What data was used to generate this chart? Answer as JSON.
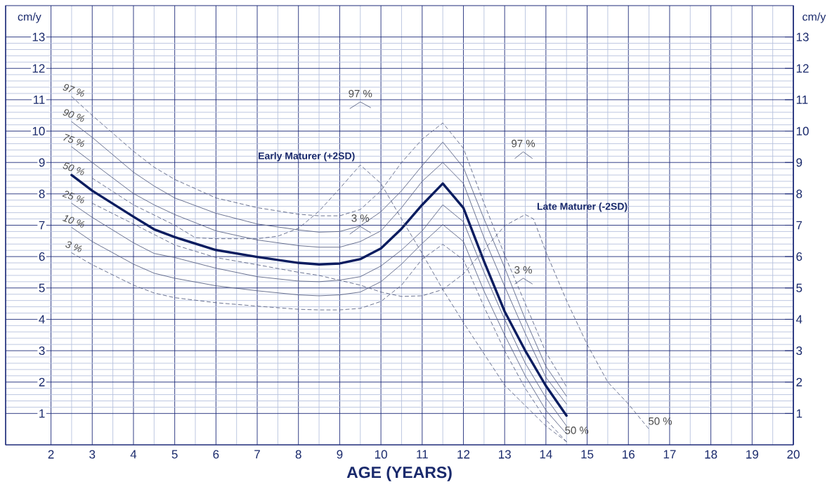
{
  "chart_data": {
    "type": "line",
    "xlabel": "AGE (YEARS)",
    "ylabel": "cm/y",
    "y2label": "cm/y",
    "xlim": [
      0.9,
      20
    ],
    "ylim": [
      0,
      14
    ],
    "y2lim": [
      0,
      14
    ],
    "xticks": [
      2,
      3,
      4,
      5,
      6,
      7,
      8,
      9,
      10,
      11,
      12,
      13,
      14,
      15,
      16,
      17,
      18,
      19,
      20
    ],
    "yticks": [
      1,
      2,
      3,
      4,
      5,
      6,
      7,
      8,
      9,
      10,
      11,
      12,
      13
    ],
    "y2ticks": [
      1,
      2,
      3,
      4,
      5,
      6,
      7,
      8,
      9,
      10,
      11,
      12,
      13
    ],
    "grid": true,
    "legend": false,
    "marker": "none",
    "series": [
      {
        "name": "97 %",
        "color": "#5a6384",
        "line_style": "dashed",
        "x": [
          2.5,
          3,
          4,
          4.5,
          5,
          6,
          7,
          8,
          8.5,
          9,
          9.5,
          10,
          10.5,
          11,
          11.5,
          12,
          12.5,
          13,
          13.5,
          14,
          14.5
        ],
        "values": [
          11.1,
          10.5,
          9.36,
          8.85,
          8.46,
          7.87,
          7.56,
          7.35,
          7.3,
          7.3,
          7.5,
          8.1,
          9.0,
          9.74,
          10.26,
          9.45,
          7.7,
          6.05,
          4.5,
          2.95,
          1.85
        ]
      },
      {
        "name": "90 %",
        "color": "#5a6384",
        "line_style": "solid",
        "x": [
          2.5,
          3,
          4,
          4.5,
          5,
          6,
          7,
          8,
          8.5,
          9,
          9.5,
          10,
          10.5,
          11,
          11.5,
          12,
          12.5,
          13,
          13.5,
          14,
          14.5
        ],
        "values": [
          10.3,
          9.8,
          8.69,
          8.25,
          7.87,
          7.38,
          7.04,
          6.85,
          6.78,
          6.8,
          6.98,
          7.43,
          8.1,
          8.9,
          9.65,
          8.84,
          7.2,
          5.65,
          4.0,
          2.5,
          1.55
        ]
      },
      {
        "name": "75 %",
        "color": "#5a6384",
        "line_style": "solid",
        "x": [
          2.5,
          3,
          4,
          4.5,
          5,
          6,
          7,
          8,
          8.5,
          9,
          9.5,
          10,
          10.5,
          11,
          11.5,
          12,
          12.5,
          13,
          13.5,
          14,
          14.5
        ],
        "values": [
          9.5,
          9.0,
          8.01,
          7.65,
          7.34,
          6.82,
          6.53,
          6.35,
          6.3,
          6.3,
          6.48,
          6.82,
          7.56,
          8.4,
          9.0,
          8.33,
          6.6,
          5.05,
          3.55,
          2.15,
          1.3
        ]
      },
      {
        "name": "50 %",
        "color": "#0b1c5f",
        "line_style": "solid",
        "x": [
          2.5,
          3,
          4,
          4.5,
          5,
          6,
          7,
          8,
          8.5,
          9,
          9.5,
          10,
          10.5,
          11,
          11.5,
          12,
          12.5,
          13,
          13.5,
          14,
          14.5
        ],
        "values": [
          8.6,
          8.1,
          7.27,
          6.87,
          6.62,
          6.21,
          5.99,
          5.8,
          5.75,
          5.78,
          5.92,
          6.26,
          6.89,
          7.65,
          8.33,
          7.55,
          5.85,
          4.25,
          3.0,
          1.88,
          0.93
        ]
      },
      {
        "name": "25 %",
        "color": "#5a6384",
        "line_style": "solid",
        "x": [
          2.5,
          3,
          4,
          4.5,
          5,
          6,
          7,
          8,
          8.5,
          9,
          9.5,
          10,
          10.5,
          11,
          11.5,
          12,
          12.5,
          13,
          13.5,
          14,
          14.5
        ],
        "values": [
          7.7,
          7.25,
          6.44,
          6.1,
          5.97,
          5.63,
          5.36,
          5.22,
          5.2,
          5.25,
          5.36,
          5.7,
          6.21,
          6.82,
          7.65,
          7.11,
          5.5,
          4.0,
          2.6,
          1.5,
          0.6
        ]
      },
      {
        "name": "10 %",
        "color": "#5a6384",
        "line_style": "solid",
        "x": [
          2.5,
          3,
          4,
          4.5,
          5,
          6,
          7,
          8,
          8.5,
          9,
          9.5,
          10,
          10.5,
          11,
          11.5,
          12,
          12.5,
          13,
          13.5,
          14,
          14.5
        ],
        "values": [
          6.93,
          6.48,
          5.76,
          5.47,
          5.31,
          5.07,
          4.91,
          4.78,
          4.75,
          4.78,
          4.87,
          5.2,
          5.76,
          6.42,
          7.02,
          6.48,
          4.9,
          3.5,
          2.2,
          1.1,
          0.35
        ]
      },
      {
        "name": "3 %",
        "color": "#5a6384",
        "line_style": "dashed",
        "x": [
          2.5,
          3,
          4,
          4.5,
          5,
          6,
          7,
          8,
          8.5,
          9,
          9.5,
          10,
          10.5,
          11,
          11.5,
          12,
          12.5,
          13,
          13.5,
          14,
          14.5
        ],
        "values": [
          6.12,
          5.74,
          5.09,
          4.84,
          4.69,
          4.53,
          4.42,
          4.32,
          4.3,
          4.3,
          4.35,
          4.57,
          5.09,
          5.92,
          6.39,
          5.9,
          4.4,
          3.0,
          1.8,
          0.8,
          0.1
        ]
      },
      {
        "color": "#5a6384",
        "line_style": "dashed",
        "x": [
          3,
          4,
          5,
          5.5,
          6,
          7,
          7.5,
          8,
          8.5,
          9,
          9.5,
          10,
          10.5,
          11,
          11.5,
          12,
          13,
          14,
          14.5
        ],
        "values": [
          8.5,
          7.65,
          7.0,
          6.6,
          6.57,
          6.57,
          6.65,
          6.9,
          7.45,
          8.17,
          8.92,
          8.33,
          7.2,
          6.1,
          4.95,
          3.9,
          1.9,
          0.6,
          0.1
        ]
      },
      {
        "color": "#5a6384",
        "line_style": "dashed",
        "x": [
          3,
          4,
          5,
          6,
          7,
          8,
          8.5,
          9.5,
          10,
          10.5,
          11,
          11.5,
          12,
          13,
          13.5,
          13.7,
          14,
          14.5,
          15,
          15.5,
          16,
          16.5
        ],
        "values": [
          7.7,
          7.04,
          6.37,
          5.97,
          5.74,
          5.5,
          5.4,
          5.09,
          4.87,
          4.73,
          4.75,
          4.95,
          5.45,
          6.98,
          7.34,
          7.2,
          6.15,
          4.6,
          3.2,
          2.0,
          1.3,
          0.5
        ]
      },
      {
        "name": "97 %",
        "color": "#5a6384",
        "line_style": "solid",
        "x": [
          9.25,
          9.5,
          9.75
        ],
        "values": [
          10.72,
          10.93,
          10.75
        ]
      },
      {
        "name": "3 %",
        "color": "#5a6384",
        "line_style": "solid",
        "x": [
          9.25,
          9.5,
          9.75
        ],
        "values": [
          6.72,
          6.96,
          6.76
        ]
      },
      {
        "name": "97 %",
        "color": "#5a6384",
        "line_style": "solid",
        "x": [
          13.25,
          13.45,
          13.67
        ],
        "values": [
          9.13,
          9.34,
          9.13
        ]
      },
      {
        "name": "3 %",
        "color": "#5a6384",
        "line_style": "solid",
        "x": [
          13.25,
          13.45,
          13.67
        ],
        "values": [
          5.13,
          5.31,
          5.13
        ]
      }
    ],
    "annotations": [
      "Early Maturer (+2SD)",
      "Late Maturer (-2SD)",
      "50 %",
      "50 %"
    ]
  }
}
